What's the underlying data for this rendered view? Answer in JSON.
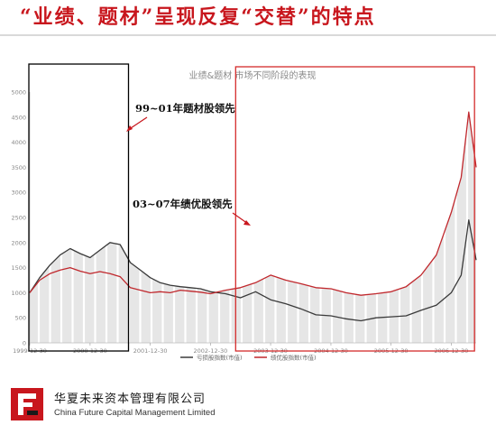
{
  "slide": {
    "title": "“业绩、题材”呈现反复“交替”的特点"
  },
  "annotations": {
    "period1": "99~01年题材股领先",
    "period2": "03~07年绩优股领先"
  },
  "footer": {
    "company_cn": "华夏未来资本管理有限公司",
    "company_en": "China Future Capital Management Limited"
  },
  "colors": {
    "title": "#c8161d",
    "theme_series": "#3a3a3a",
    "quality_series": "#c0282d",
    "frame1": "#000000",
    "frame2": "#d42b2b",
    "fill": "#e6e6e6"
  },
  "chart_data": {
    "type": "line",
    "title": "业绩&题材 市场不同阶段的表现",
    "x_ticks": [
      "1999-12-30",
      "2000-12-30",
      "2001-12-30",
      "2002-12-30",
      "2003-12-30",
      "2004-12-30",
      "2005-12-30",
      "2006-12-30"
    ],
    "y_ticks": [
      0,
      500,
      1000,
      1500,
      2000,
      2500,
      3000,
      3500,
      4000,
      4500,
      5000
    ],
    "ylim": [
      0,
      5000
    ],
    "xlim": [
      "1999-12-30",
      "2007-05-30"
    ],
    "grid": false,
    "legend_position": "bottom",
    "series": [
      {
        "name": "亏损股指数(市值)",
        "x": [
          "1999-12-30",
          "2000-02-28",
          "2000-04-30",
          "2000-06-30",
          "2000-08-31",
          "2000-10-31",
          "2000-12-30",
          "2001-02-28",
          "2001-04-30",
          "2001-06-30",
          "2001-08-31",
          "2001-10-31",
          "2001-12-30",
          "2002-02-28",
          "2002-04-30",
          "2002-06-30",
          "2002-08-31",
          "2002-10-31",
          "2002-12-30",
          "2003-03-31",
          "2003-06-30",
          "2003-09-30",
          "2003-12-30",
          "2004-03-31",
          "2004-06-30",
          "2004-09-30",
          "2004-12-30",
          "2005-03-31",
          "2005-06-30",
          "2005-09-30",
          "2005-12-30",
          "2006-03-31",
          "2006-06-30",
          "2006-09-30",
          "2006-12-30",
          "2007-02-28",
          "2007-04-15",
          "2007-05-30"
        ],
        "values": [
          1000,
          1300,
          1550,
          1750,
          1880,
          1780,
          1700,
          1850,
          2000,
          1960,
          1600,
          1450,
          1300,
          1200,
          1150,
          1120,
          1100,
          1080,
          1020,
          980,
          900,
          1020,
          860,
          780,
          680,
          560,
          540,
          480,
          440,
          500,
          520,
          540,
          650,
          750,
          1000,
          1350,
          2450,
          1650
        ]
      },
      {
        "name": "绩优股指数(市值)",
        "x": [
          "1999-12-30",
          "2000-02-28",
          "2000-04-30",
          "2000-06-30",
          "2000-08-31",
          "2000-10-31",
          "2000-12-30",
          "2001-02-28",
          "2001-04-30",
          "2001-06-30",
          "2001-08-31",
          "2001-10-31",
          "2001-12-30",
          "2002-02-28",
          "2002-04-30",
          "2002-06-30",
          "2002-08-31",
          "2002-10-31",
          "2002-12-30",
          "2003-03-31",
          "2003-06-30",
          "2003-09-30",
          "2003-12-30",
          "2004-03-31",
          "2004-06-30",
          "2004-09-30",
          "2004-12-30",
          "2005-03-31",
          "2005-06-30",
          "2005-09-30",
          "2005-12-30",
          "2006-03-31",
          "2006-06-30",
          "2006-09-30",
          "2006-12-30",
          "2007-02-28",
          "2007-04-15",
          "2007-05-30"
        ],
        "values": [
          1000,
          1250,
          1380,
          1450,
          1500,
          1430,
          1380,
          1420,
          1380,
          1320,
          1100,
          1050,
          1000,
          1020,
          1000,
          1050,
          1030,
          1010,
          980,
          1050,
          1100,
          1200,
          1350,
          1250,
          1180,
          1100,
          1080,
          1000,
          950,
          980,
          1020,
          1120,
          1350,
          1750,
          2600,
          3300,
          4600,
          3500
        ]
      }
    ]
  }
}
